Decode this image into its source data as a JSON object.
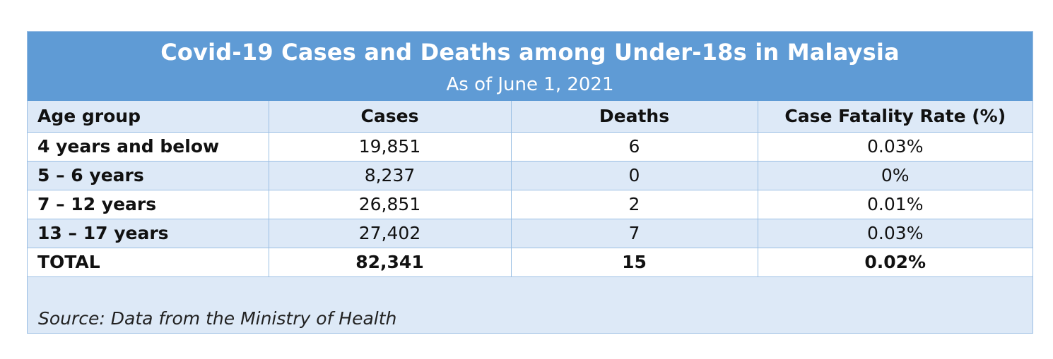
{
  "table": {
    "title": "Covid-19 Cases and Deaths among Under-18s in Malaysia",
    "subtitle": "As of June 1, 2021",
    "columns": [
      "Age group",
      "Cases",
      "Deaths",
      "Case Fatality Rate (%)"
    ],
    "rows": [
      [
        "4 years and below",
        "19,851",
        "6",
        "0.03%"
      ],
      [
        "5 – 6 years",
        "8,237",
        "0",
        "0%"
      ],
      [
        "7 – 12 years",
        "26,851",
        "2",
        "0.01%"
      ],
      [
        "13 – 17 years",
        "27,402",
        "7",
        "0.03%"
      ]
    ],
    "total": [
      "TOTAL",
      "82,341",
      "15",
      "0.02%"
    ],
    "source": "Source: Data from the Ministry of Health"
  },
  "colors": {
    "title_band": "#5f9bd5",
    "light_row": "#dde9f7",
    "white_row": "#ffffff",
    "border": "#9bbfe4"
  }
}
